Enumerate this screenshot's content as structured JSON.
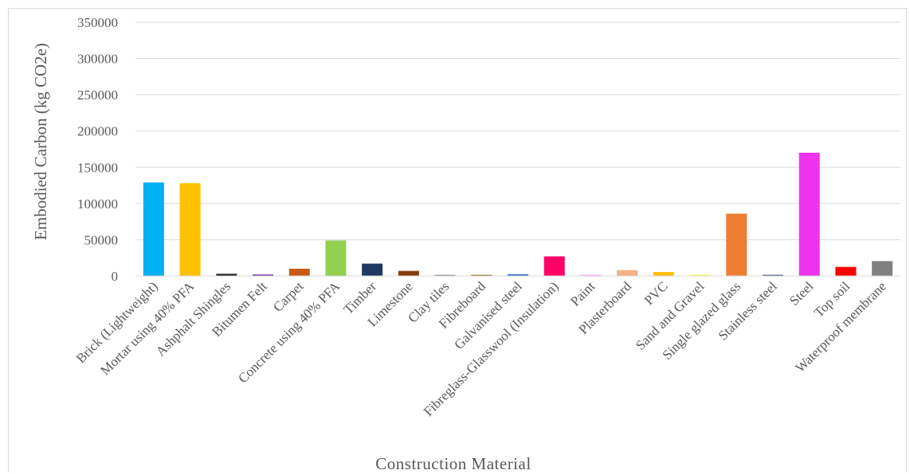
{
  "chart_data": {
    "type": "bar",
    "title": "",
    "xlabel": "Construction  Material",
    "ylabel": "Embodied Carbon (kg CO2e)",
    "ylim": [
      0,
      350000
    ],
    "yticks": [
      0,
      50000,
      100000,
      150000,
      200000,
      250000,
      300000,
      350000
    ],
    "grid": true,
    "categories": [
      "Brick (Lightweight)",
      "Mortar using 40% PFA",
      "Ashphalt Shingles",
      "Bitumen Felt",
      "Carpet",
      "Concrete using 40% PFA",
      "Timber",
      "Limestone",
      "Clay tiles",
      "Fibreboard",
      "Galvanised steel",
      "Fibreglass-Glasswool (Insulation)",
      "Paint",
      "Plasterboard",
      "PVC",
      "Sand and Gravel",
      "Single glazed glass",
      "Stainless steel",
      "Steel",
      "Top soil",
      "Waterproof membrane"
    ],
    "values": [
      129000,
      128000,
      3000,
      2000,
      10000,
      49000,
      17000,
      7000,
      1500,
      1500,
      2500,
      27000,
      1500,
      8000,
      5500,
      2000,
      86000,
      1500,
      170000,
      12500,
      20500
    ],
    "colors": [
      "#00b0f0",
      "#ffc000",
      "#262626",
      "#7030a0",
      "#c55a11",
      "#92d050",
      "#1f3864",
      "#843c0c",
      "#7f7f7f",
      "#806000",
      "#4472c4",
      "#ff0066",
      "#ff99ff",
      "#f4b183",
      "#ffc000",
      "#ffff66",
      "#ed7d31",
      "#203864",
      "#ee33ee",
      "#ff0000",
      "#808080"
    ]
  }
}
